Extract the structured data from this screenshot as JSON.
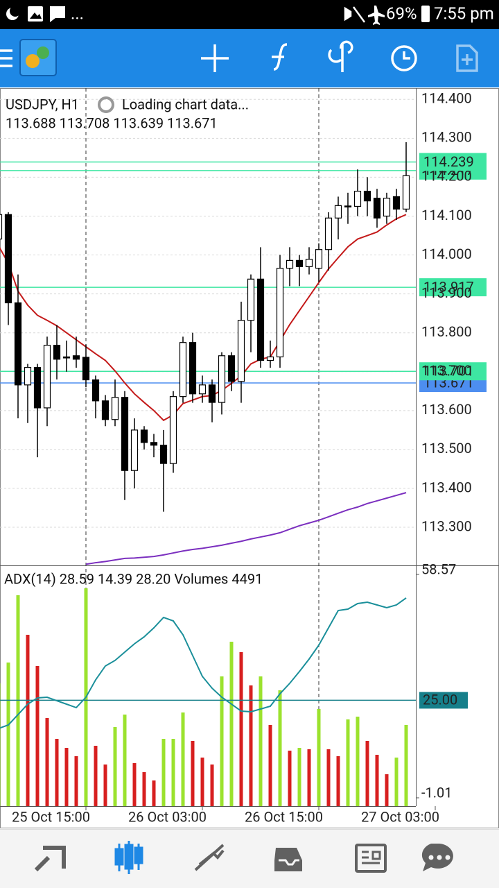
{
  "status_bar": {
    "more": "...",
    "battery": "69%",
    "time": "7:55 pm"
  },
  "chart_data": [
    {
      "type": "candlestick",
      "title": "USDJPY, H1",
      "subtitle": "Loading chart data...",
      "ohlc_label": "113.688 113.708 113.639 113.671",
      "ylim": [
        113.202,
        114.429
      ],
      "yticks": [
        {
          "value": 113.3,
          "label": "113.300"
        },
        {
          "value": 113.4,
          "label": "113.400"
        },
        {
          "value": 113.5,
          "label": "113.500"
        },
        {
          "value": 113.6,
          "label": "113.600"
        },
        {
          "value": 113.7,
          "label": "113.700"
        },
        {
          "value": 113.8,
          "label": "113.800"
        },
        {
          "value": 113.9,
          "label": "113.900"
        },
        {
          "value": 114.0,
          "label": "114.000"
        },
        {
          "value": 114.1,
          "label": "114.100"
        },
        {
          "value": 114.2,
          "label": "114.200"
        },
        {
          "value": 114.3,
          "label": "114.300"
        },
        {
          "value": 114.4,
          "label": "114.400"
        }
      ],
      "separators": [
        9,
        33
      ],
      "up_color": "#ffffff",
      "down_color": "#000000",
      "open": [
        114.041,
        114.104,
        113.877,
        113.666,
        113.711,
        113.607,
        113.768,
        113.738,
        113.741,
        113.737,
        113.679,
        113.625,
        113.577,
        113.634,
        113.446,
        113.55,
        113.518,
        113.511,
        113.464,
        113.636,
        113.775,
        113.643,
        113.666,
        113.621,
        113.741,
        113.675,
        113.832,
        113.938,
        113.729,
        113.738,
        113.966,
        113.986,
        113.97,
        113.966,
        114.014,
        114.095,
        114.126,
        114.125,
        114.164,
        114.146,
        114.1,
        114.15,
        114.118
      ],
      "high": [
        114.11,
        114.11,
        113.95,
        113.72,
        113.72,
        113.79,
        113.82,
        113.78,
        113.79,
        113.77,
        113.69,
        113.64,
        113.68,
        113.65,
        113.58,
        113.56,
        113.54,
        113.55,
        113.65,
        113.79,
        113.8,
        113.69,
        113.68,
        113.75,
        113.75,
        113.88,
        113.95,
        114.02,
        113.78,
        114.0,
        114.02,
        114.0,
        114.02,
        114.03,
        114.11,
        114.15,
        114.16,
        114.22,
        114.2,
        114.17,
        114.16,
        114.17,
        114.29
      ],
      "low": [
        113.99,
        113.82,
        113.58,
        113.568,
        113.48,
        113.56,
        113.68,
        113.7,
        113.71,
        113.66,
        113.58,
        113.56,
        113.56,
        113.37,
        113.4,
        113.5,
        113.48,
        113.34,
        113.44,
        113.62,
        113.62,
        113.62,
        113.57,
        113.59,
        113.65,
        113.62,
        113.75,
        113.71,
        113.71,
        113.71,
        113.92,
        113.92,
        113.95,
        113.93,
        113.96,
        114.04,
        114.08,
        114.1,
        114.1,
        114.07,
        114.08,
        114.09,
        114.11
      ],
      "close": [
        114.104,
        113.877,
        113.666,
        113.711,
        113.607,
        113.768,
        113.732,
        113.736,
        113.732,
        113.679,
        113.625,
        113.577,
        113.634,
        113.446,
        113.55,
        113.518,
        113.511,
        113.464,
        113.636,
        113.775,
        113.643,
        113.666,
        113.621,
        113.741,
        113.675,
        113.832,
        113.938,
        113.729,
        113.738,
        113.966,
        113.986,
        113.97,
        113.989,
        114.014,
        114.095,
        114.127,
        114.125,
        114.164,
        114.139,
        114.095,
        114.146,
        114.118,
        114.204
      ],
      "lines": [
        {
          "color": "#c41a1a",
          "values": [
            114.023,
            113.979,
            113.907,
            113.871,
            113.845,
            113.832,
            113.818,
            113.8,
            113.782,
            113.764,
            113.746,
            113.729,
            113.702,
            113.671,
            113.643,
            113.621,
            113.6,
            113.575,
            113.589,
            113.618,
            113.627,
            113.636,
            113.639,
            113.652,
            113.67,
            113.689,
            113.72,
            113.732,
            113.738,
            113.779,
            113.821,
            113.857,
            113.893,
            113.929,
            113.964,
            113.993,
            114.021,
            114.041,
            114.05,
            114.059,
            114.077,
            114.093,
            114.104
          ]
        },
        {
          "color": "#7b2fbf",
          "values": [
            null,
            null,
            null,
            null,
            null,
            null,
            null,
            null,
            null,
            113.205,
            113.209,
            113.212,
            113.216,
            113.22,
            113.221,
            113.223,
            113.225,
            113.229,
            113.234,
            113.239,
            113.243,
            113.246,
            113.25,
            113.254,
            113.259,
            113.264,
            113.27,
            113.275,
            113.28,
            113.286,
            113.295,
            113.304,
            113.311,
            113.318,
            113.327,
            113.336,
            113.345,
            113.352,
            113.361,
            113.368,
            113.375,
            113.382,
            113.389
          ]
        }
      ],
      "levels": [
        {
          "value": 114.217,
          "label": "114.217",
          "color": "#3ee6a2"
        },
        {
          "value": 114.239,
          "label": "114.239",
          "color": "#3ee6a2"
        },
        {
          "value": 113.917,
          "label": "113.917",
          "color": "#3ee6a2"
        },
        {
          "value": 113.671,
          "label": "113.671",
          "color": "#4d8ef0"
        },
        {
          "value": 113.701,
          "label": "113.701",
          "color": "#3ee6a2"
        }
      ]
    },
    {
      "type": "indicator",
      "title": "ADX(14) 28.59 14.39 28.20 Volumes 4491",
      "ylim": [
        -3.23,
        60.42
      ],
      "yticks": [
        58.57,
        -1.01
      ],
      "y2lim": [
        0,
        13203
      ],
      "levels": [
        {
          "value": 25,
          "label": "25.00",
          "color": "#167f8a"
        }
      ],
      "xticks": [
        {
          "value": 9,
          "label": "25 Oct 15:00"
        },
        {
          "value": 21,
          "label": "26 Oct 03:00"
        },
        {
          "value": 33,
          "label": "26 Oct 15:00"
        },
        {
          "value": 45,
          "label": "27 Oct 03:00"
        }
      ],
      "series": [
        {
          "color": "#1a8f9a",
          "values": [
            17.49,
            18.42,
            21.19,
            23.97,
            25.63,
            25.82,
            24.89,
            23.97,
            23.04,
            25.82,
            30.45,
            34.15,
            35.63,
            37.85,
            40.07,
            41.92,
            44.32,
            47.1,
            46.17,
            42.47,
            36.92,
            31.37,
            28.23,
            25.82,
            23.97,
            22.12,
            21.93,
            22.67,
            23.41,
            26.74,
            29.52,
            32.67,
            36.0,
            39.7,
            44.32,
            48.95,
            49.32,
            50.8,
            51.17,
            50.43,
            49.69,
            50.43,
            52.28
          ]
        },
        {
          "axis": "y2",
          "values": [
            6793,
            7945,
            11668,
            9480,
            7753,
            4874,
            3723,
            3224,
            2763,
            12051,
            3339,
            2303,
            4375,
            5066,
            2380,
            1881,
            1420,
            3723,
            3723,
            5181,
            3608,
            2687,
            2303,
            7177,
            9096,
            8520,
            6678,
            7177,
            4490,
            6409,
            3070,
            3224,
            3147,
            5373,
            3147,
            2763,
            4798,
            4951,
            3608,
            2840,
            1765,
            2687,
            4491
          ],
          "colors": [
            "#9be22d",
            "#9be22d",
            "#9be22d",
            "#d71f1f",
            "#d71f1f",
            "#d71f1f",
            "#d71f1f",
            "#d71f1f",
            "#d71f1f",
            "#9be22d",
            "#d71f1f",
            "#d71f1f",
            "#9be22d",
            "#9be22d",
            "#d71f1f",
            "#d71f1f",
            "#d71f1f",
            "#9be22d",
            "#9be22d",
            "#9be22d",
            "#d71f1f",
            "#d71f1f",
            "#d71f1f",
            "#9be22d",
            "#9be22d",
            "#d71f1f",
            "#d71f1f",
            "#9be22d",
            "#d71f1f",
            "#9be22d",
            "#d71f1f",
            "#9be22d",
            "#d71f1f",
            "#9be22d",
            "#d71f1f",
            "#d71f1f",
            "#9be22d",
            "#9be22d",
            "#d71f1f",
            "#d71f1f",
            "#d71f1f",
            "#9be22d",
            "#9be22d"
          ]
        }
      ]
    }
  ]
}
